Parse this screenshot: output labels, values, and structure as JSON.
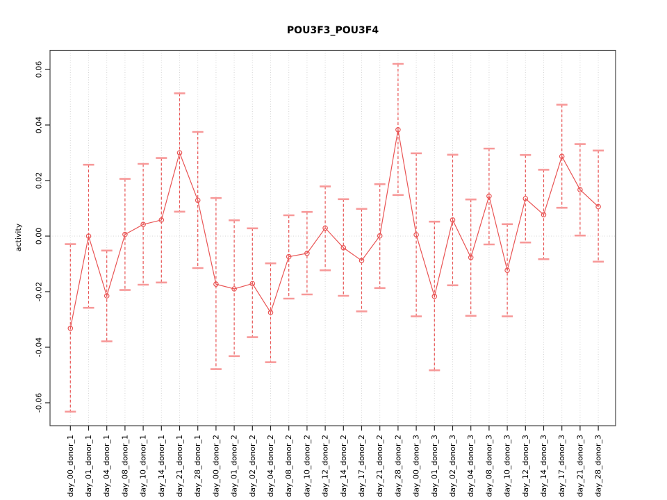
{
  "figure": {
    "background": "#ffffff"
  },
  "chart_data": {
    "type": "line",
    "title": "POU3F3_POU3F4",
    "xlabel": "",
    "ylabel": "activity",
    "ylim": [
      -0.068,
      0.0675
    ],
    "yticks": [
      0.06,
      0.04,
      0.02,
      0.0,
      -0.02,
      -0.04,
      -0.06
    ],
    "ytick_labels": [
      "0.06",
      "0.04",
      "0.02",
      "0.00",
      "-0.02",
      "-0.04",
      "-0.06"
    ],
    "grid": "vertical dotted gridline at every category; horizontal dotted gridline at y=0 only",
    "legend": "none",
    "marker": "open-circle",
    "error_bars": "dashed vertical whiskers with flat caps",
    "categories": [
      "day_00_donor_1",
      "day_01_donor_1",
      "day_04_donor_1",
      "day_08_donor_1",
      "day_10_donor_1",
      "day_14_donor_1",
      "day_21_donor_1",
      "day_28_donor_1",
      "day_00_donor_2",
      "day_01_donor_2",
      "day_02_donor_2",
      "day_04_donor_2",
      "day_08_donor_2",
      "day_10_donor_2",
      "day_12_donor_2",
      "day_14_donor_2",
      "day_17_donor_2",
      "day_21_donor_2",
      "day_28_donor_2",
      "day_00_donor_3",
      "day_01_donor_3",
      "day_02_donor_3",
      "day_04_donor_3",
      "day_08_donor_3",
      "day_10_donor_3",
      "day_12_donor_3",
      "day_14_donor_3",
      "day_17_donor_3",
      "day_21_donor_3",
      "day_28_donor_3"
    ],
    "series": [
      {
        "name": "activity",
        "values": [
          -0.0332,
          0.0,
          -0.0215,
          0.0006,
          0.0042,
          0.0058,
          0.03,
          0.0129,
          -0.0173,
          -0.019,
          -0.0171,
          -0.0275,
          -0.0074,
          -0.0062,
          0.0029,
          -0.0042,
          -0.0088,
          0.0001,
          0.0383,
          0.0005,
          -0.0217,
          0.0058,
          -0.0077,
          0.0144,
          -0.0123,
          0.0135,
          0.0077,
          0.0287,
          0.0167,
          0.0106
        ],
        "error_high": [
          -0.0029,
          0.0257,
          -0.0052,
          0.0206,
          0.026,
          0.0281,
          0.0514,
          0.0375,
          0.0137,
          0.0057,
          0.0028,
          -0.0098,
          0.0075,
          0.0087,
          0.0179,
          0.0133,
          0.0098,
          0.0187,
          0.062,
          0.0298,
          0.0052,
          0.0293,
          0.0132,
          0.0315,
          0.0043,
          0.0292,
          0.0239,
          0.0473,
          0.0331,
          0.0308
        ],
        "error_low": [
          -0.0632,
          -0.0258,
          -0.0379,
          -0.0194,
          -0.0175,
          -0.0167,
          0.0088,
          -0.0115,
          -0.0479,
          -0.0432,
          -0.0364,
          -0.0454,
          -0.0225,
          -0.021,
          -0.0123,
          -0.0215,
          -0.0271,
          -0.0187,
          0.0148,
          -0.0289,
          -0.0483,
          -0.0177,
          -0.0287,
          -0.003,
          -0.0289,
          -0.0023,
          -0.0083,
          0.0102,
          0.0002,
          -0.0092
        ]
      }
    ],
    "colors": {
      "series": "#e95454",
      "cap": "#f79999",
      "grid": "#d6d6d6",
      "axis": "#444444",
      "text": "#000000"
    }
  }
}
